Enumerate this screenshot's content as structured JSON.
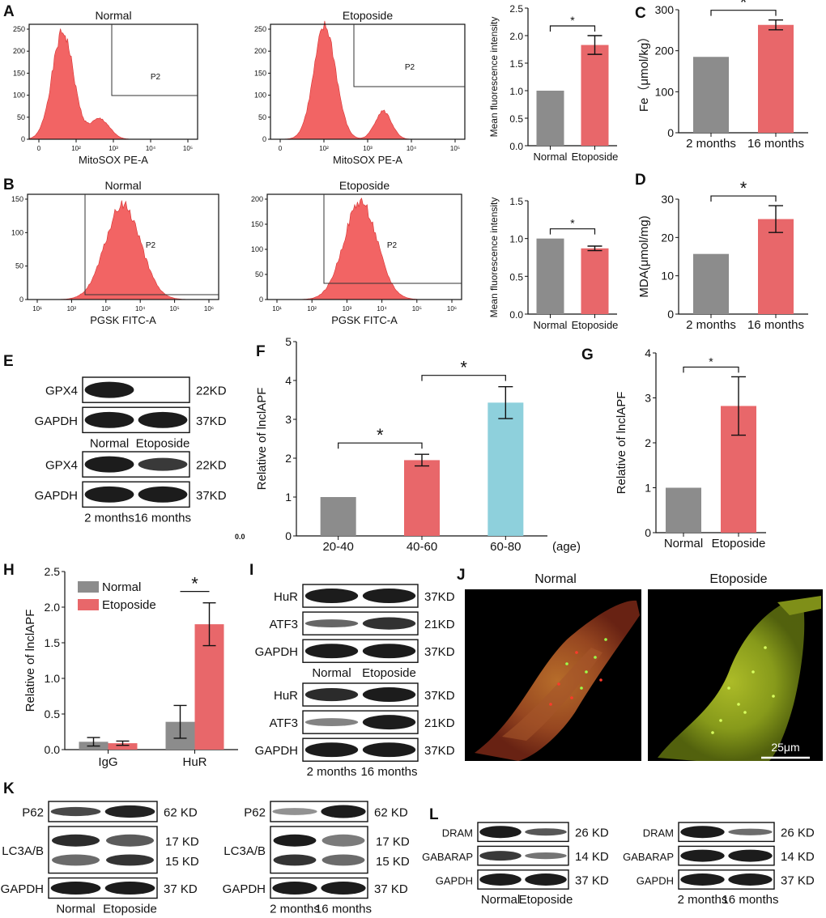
{
  "colors": {
    "gray": "#8c8c8c",
    "red": "#e8676a",
    "teal": "#8ed0dc",
    "flow": "#f26464",
    "blot": "#1c1c1c"
  },
  "panels": {
    "A": "A",
    "B": "B",
    "C": "C",
    "D": "D",
    "E": "E",
    "F": "F",
    "G": "G",
    "H": "H",
    "I": "I",
    "J": "J",
    "K": "K",
    "L": "L"
  },
  "flow": [
    {
      "id": "A-normal",
      "title": "Normal",
      "xlabel": "MitoSOX PE-A",
      "gate": "P2",
      "yticks": [
        "0",
        "50",
        "100",
        "150",
        "200",
        "250"
      ],
      "xticks": [
        "0",
        "10²",
        "10³",
        "10⁴",
        "10⁵"
      ]
    },
    {
      "id": "A-etoposide",
      "title": "Etoposide",
      "xlabel": "MitoSOX PE-A",
      "gate": "P2",
      "yticks": [
        "0",
        "50",
        "100",
        "150",
        "200",
        "250"
      ],
      "xticks": [
        "0",
        "10²",
        "10³",
        "10⁴",
        "10⁵"
      ]
    },
    {
      "id": "B-normal",
      "title": "Normal",
      "xlabel": "PGSK FITC-A",
      "gate": "P2",
      "yticks": [
        "0",
        "50",
        "100",
        "150"
      ],
      "xticks": [
        "10¹",
        "10²",
        "10³",
        "10⁴",
        "10⁵",
        "10⁶"
      ]
    },
    {
      "id": "B-etoposide",
      "title": "Etoposide",
      "xlabel": "PGSK FITC-A",
      "gate": "P2",
      "yticks": [
        "0",
        "50",
        "100",
        "150",
        "200"
      ],
      "xticks": [
        "10¹",
        "10²",
        "10³",
        "10⁴",
        "10⁵",
        "10⁶"
      ]
    }
  ],
  "chart_data": [
    {
      "id": "A-mfi",
      "type": "bar",
      "categories": [
        "Normal",
        "Etoposide"
      ],
      "values": [
        1.0,
        1.83
      ],
      "errors": [
        0,
        0.17
      ],
      "ylabel": "Mean fluorescence intensity",
      "ylim": [
        0,
        2.5
      ],
      "yticks": [
        "0.0",
        "0.5",
        "1.0",
        "1.5",
        "2.0",
        "2.5"
      ],
      "sig": "*"
    },
    {
      "id": "C-fe",
      "type": "bar",
      "categories": [
        "2 months",
        "16 months"
      ],
      "values": [
        185,
        263
      ],
      "errors": [
        0,
        12
      ],
      "ylabel": "Fe（μmol/kg）",
      "ylim": [
        0,
        300
      ],
      "yticks": [
        "0",
        "100",
        "200",
        "300"
      ],
      "sig": "*"
    },
    {
      "id": "B-mfi",
      "type": "bar",
      "categories": [
        "Normal",
        "Etoposide"
      ],
      "values": [
        1.0,
        0.87
      ],
      "errors": [
        0,
        0.03
      ],
      "ylabel": "Mean fluorescence intensity",
      "ylim": [
        0,
        1.5
      ],
      "yticks": [
        "0.0",
        "0.5",
        "1.0",
        "1.5"
      ],
      "sig": "*"
    },
    {
      "id": "D-mda",
      "type": "bar",
      "categories": [
        "2 months",
        "16 months"
      ],
      "values": [
        15.7,
        24.8
      ],
      "errors": [
        0,
        3.5
      ],
      "ylabel": "MDA(μmol/mg)",
      "ylim": [
        0,
        30
      ],
      "yticks": [
        "0",
        "10",
        "20",
        "30"
      ],
      "sig": "*"
    },
    {
      "id": "F-age",
      "type": "bar",
      "categories": [
        "20-40",
        "40-60",
        "60-80"
      ],
      "values": [
        1.0,
        1.95,
        3.43
      ],
      "errors": [
        0,
        0.15,
        0.41
      ],
      "ylabel": "Relative of lnclAPF",
      "xunit": "(age)",
      "ylim": [
        0,
        5
      ],
      "yticks": [
        "0",
        "1",
        "2",
        "3",
        "4",
        "5"
      ],
      "sig": "*",
      "extra": "0.0"
    },
    {
      "id": "G-eto",
      "type": "bar",
      "categories": [
        "Normal",
        "Etoposide"
      ],
      "values": [
        1.0,
        2.82
      ],
      "errors": [
        0,
        0.65
      ],
      "ylabel": "Relative of lnclAPF",
      "ylim": [
        0,
        4
      ],
      "yticks": [
        "0",
        "1",
        "2",
        "3",
        "4"
      ],
      "sig": "*"
    },
    {
      "id": "H-rip",
      "type": "bar",
      "categories": [
        "IgG",
        "HuR"
      ],
      "series": [
        {
          "name": "Normal",
          "values": [
            0.11,
            0.39
          ],
          "errors": [
            0.06,
            0.23
          ]
        },
        {
          "name": "Etoposide",
          "values": [
            0.09,
            1.76
          ],
          "errors": [
            0.03,
            0.3
          ]
        }
      ],
      "ylabel": "Relative of lnclAPF",
      "ylim": [
        0,
        2.5
      ],
      "yticks": [
        "0.0",
        "0.5",
        "1.0",
        "1.5",
        "2.0",
        "2.5"
      ],
      "sig": "*"
    }
  ],
  "blots": {
    "E1": {
      "rows": [
        {
          "name": "GPX4",
          "kd": "22KD"
        },
        {
          "name": "GAPDH",
          "kd": "37KD"
        }
      ],
      "labels": [
        "Normal",
        "Etoposide"
      ]
    },
    "E2": {
      "rows": [
        {
          "name": "GPX4",
          "kd": "22KD"
        },
        {
          "name": "GAPDH",
          "kd": "37KD"
        }
      ],
      "labels": [
        "2 months",
        "16 months"
      ]
    },
    "I1": {
      "rows": [
        {
          "name": "HuR",
          "kd": "37KD"
        },
        {
          "name": "ATF3",
          "kd": "21KD"
        },
        {
          "name": "GAPDH",
          "kd": "37KD"
        }
      ],
      "labels": [
        "Normal",
        "Etoposide"
      ]
    },
    "I2": {
      "rows": [
        {
          "name": "HuR",
          "kd": "37KD"
        },
        {
          "name": "ATF3",
          "kd": "21KD"
        },
        {
          "name": "GAPDH",
          "kd": "37KD"
        }
      ],
      "labels": [
        "2 months",
        "16 months"
      ]
    },
    "K1": {
      "rows": [
        {
          "name": "P62",
          "kd": "62 KD"
        },
        {
          "name": "LC3A/B",
          "kd": "17 KD",
          "kd2": "15 KD"
        },
        {
          "name": "GAPDH",
          "kd": "37 KD"
        }
      ],
      "labels": [
        "Normal",
        "Etoposide"
      ]
    },
    "K2": {
      "rows": [
        {
          "name": "P62",
          "kd": "62 KD"
        },
        {
          "name": "LC3A/B",
          "kd": "17 KD",
          "kd2": "15 KD"
        },
        {
          "name": "GAPDH",
          "kd": "37 KD"
        }
      ],
      "labels": [
        "2 months",
        "16 months"
      ]
    },
    "L1": {
      "rows": [
        {
          "name": "DRAM",
          "kd": "26 KD"
        },
        {
          "name": "GABARAP",
          "kd": "14 KD"
        },
        {
          "name": "GAPDH",
          "kd": "37 KD"
        }
      ],
      "labels": [
        "Normal",
        "Etoposide"
      ]
    },
    "L2": {
      "rows": [
        {
          "name": "DRAM",
          "kd": "26 KD"
        },
        {
          "name": "GABARAP",
          "kd": "14 KD"
        },
        {
          "name": "GAPDH",
          "kd": "37 KD"
        }
      ],
      "labels": [
        "2 months",
        "16 months"
      ]
    }
  },
  "micro": {
    "normal": "Normal",
    "etoposide": "Etoposide",
    "scale": "25μm"
  }
}
